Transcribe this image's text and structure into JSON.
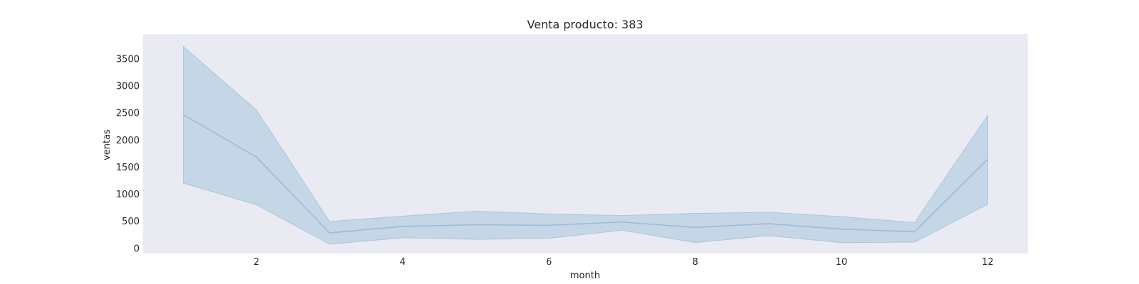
{
  "chart_data": {
    "type": "line",
    "title": "Venta producto: 383",
    "xlabel": "month",
    "ylabel": "ventas",
    "x": [
      1,
      2,
      3,
      4,
      5,
      6,
      7,
      8,
      9,
      10,
      11,
      12
    ],
    "series": [
      {
        "values": [
          2460,
          1680,
          280,
          400,
          430,
          420,
          480,
          380,
          450,
          350,
          300,
          1640
        ],
        "ci_lower": [
          1200,
          800,
          70,
          190,
          160,
          180,
          330,
          100,
          230,
          100,
          110,
          810
        ],
        "ci_upper": [
          3720,
          2550,
          490,
          590,
          680,
          630,
          600,
          640,
          660,
          580,
          470,
          2450
        ]
      }
    ],
    "xlim": [
      0.45,
      12.55
    ],
    "ylim": [
      -100,
      3950
    ],
    "xticks": [
      2,
      4,
      6,
      8,
      10,
      12
    ],
    "yticks": [
      0,
      500,
      1000,
      1500,
      2000,
      2500,
      3000,
      3500
    ],
    "grid": false,
    "legend": "none",
    "colors": {
      "background": "#eaeaf2",
      "line": "#9ebdd6",
      "band": "#a6c4dd"
    }
  }
}
